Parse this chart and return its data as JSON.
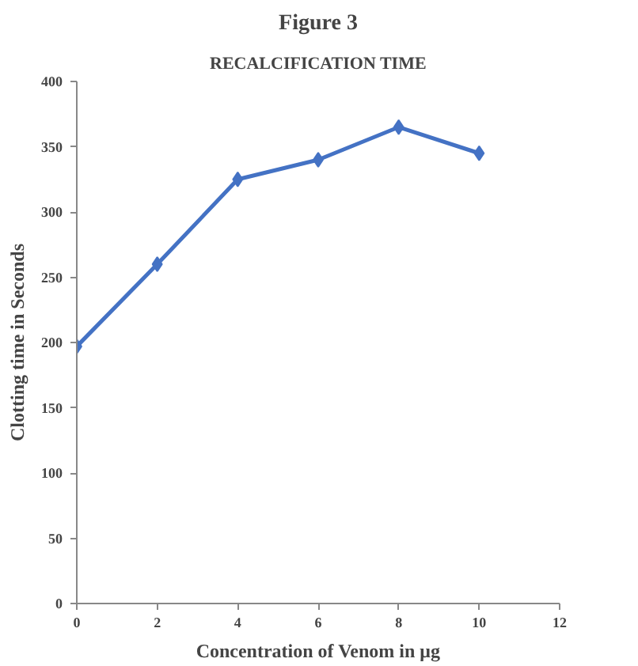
{
  "chart_data": {
    "type": "line",
    "title": "Figure 3",
    "subtitle": "RECALCIFICATION TIME",
    "xlabel": "Concentration of Venom in μg",
    "ylabel": "Clotting time in Seconds",
    "x": [
      0,
      2,
      4,
      6,
      8,
      10
    ],
    "series": [
      {
        "color": "#4472c4",
        "values": [
          197,
          260,
          325,
          340,
          365,
          345
        ]
      }
    ],
    "xlim": [
      0,
      12
    ],
    "xticks": [
      0,
      2,
      4,
      6,
      8,
      10,
      12
    ],
    "ylim": [
      0,
      400
    ],
    "yticks": [
      0,
      50,
      100,
      150,
      200,
      250,
      300,
      350,
      400
    ],
    "grid": false,
    "marker": "diamond",
    "line_style": "solid"
  }
}
